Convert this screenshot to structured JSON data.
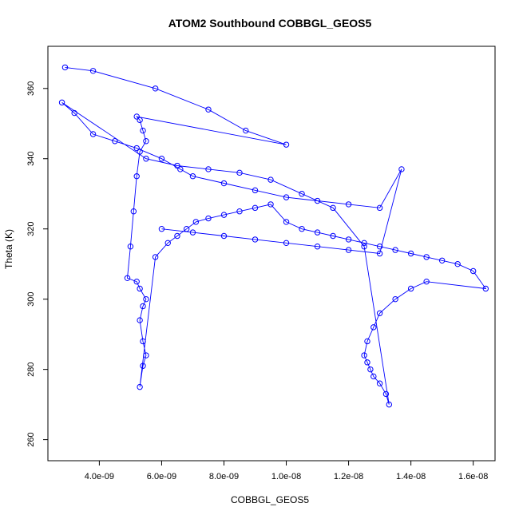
{
  "chart_data": {
    "type": "scatter",
    "title": "ATOM2 Southbound COBBGL_GEOS5",
    "xlabel": "COBBGL_GEOS5",
    "ylabel": "Theta (K)",
    "xlim": [
      2.35e-09,
      1.67e-08
    ],
    "ylim": [
      254,
      372
    ],
    "x_ticks": [
      4e-09,
      6e-09,
      8e-09,
      1e-08,
      1.2e-08,
      1.4e-08,
      1.6e-08
    ],
    "x_tick_labels": [
      "4.0e-09",
      "6.0e-09",
      "8.0e-09",
      "1.0e-08",
      "1.2e-08",
      "1.4e-08",
      "1.6e-08"
    ],
    "y_ticks": [
      260,
      280,
      300,
      320,
      340,
      360
    ],
    "y_tick_labels": [
      "260",
      "280",
      "300",
      "320",
      "340",
      "360"
    ],
    "grid": false,
    "series": [
      {
        "color": "#0000ff",
        "marker": "open-circle",
        "connected": true,
        "x": [
          2.9e-09,
          3.8e-09,
          5.8e-09,
          7.5e-09,
          8.7e-09,
          1e-08,
          5.2e-09,
          5.3e-09,
          5.4e-09,
          5.5e-09,
          5.3e-09,
          5.2e-09,
          5.1e-09,
          5e-09,
          4.9e-09,
          5.2e-09,
          5.3e-09,
          5.5e-09,
          5.4e-09,
          5.3e-09,
          5.4e-09,
          5.5e-09,
          5.4e-09,
          5.3e-09,
          5.8e-09,
          6.2e-09,
          6.5e-09,
          6.8e-09,
          7.1e-09,
          7.5e-09,
          8e-09,
          8.5e-09,
          9e-09,
          9.5e-09,
          1e-08,
          1.05e-08,
          1.1e-08,
          1.15e-08,
          1.2e-08,
          1.25e-08,
          1.3e-08,
          1.35e-08,
          1.4e-08,
          1.45e-08,
          1.5e-08,
          1.55e-08,
          1.6e-08,
          1.64e-08,
          1.45e-08,
          1.4e-08,
          1.35e-08,
          1.3e-08,
          1.28e-08,
          1.26e-08,
          1.25e-08,
          1.26e-08,
          1.27e-08,
          1.28e-08,
          1.3e-08,
          1.32e-08,
          1.33e-08,
          1.25e-08,
          1.15e-08,
          1.05e-08,
          9.5e-09,
          8.5e-09,
          7.5e-09,
          6.5e-09,
          5.5e-09,
          2.8e-09,
          3.2e-09,
          3.8e-09,
          4.5e-09,
          5.2e-09,
          6e-09,
          6.6e-09,
          7e-09,
          8e-09,
          9e-09,
          1e-08,
          1.1e-08,
          1.2e-08,
          1.3e-08,
          1.37e-08,
          1.3e-08,
          1.2e-08,
          1.1e-08,
          1e-08,
          9e-09,
          8e-09,
          7e-09,
          6e-09
        ],
        "y": [
          366,
          365,
          360,
          354,
          348,
          344,
          352,
          351,
          348,
          345,
          342,
          335,
          325,
          315,
          306,
          305,
          303,
          300,
          298,
          294,
          288,
          284,
          281,
          275,
          312,
          316,
          318,
          320,
          322,
          323,
          324,
          325,
          326,
          327,
          322,
          320,
          319,
          318,
          317,
          316,
          315,
          314,
          313,
          312,
          311,
          310,
          308,
          303,
          305,
          303,
          300,
          296,
          292,
          288,
          284,
          282,
          280,
          278,
          276,
          273,
          270,
          315,
          326,
          330,
          334,
          336,
          337,
          338,
          340,
          356,
          353,
          347,
          345,
          343,
          340,
          337,
          335,
          333,
          331,
          329,
          328,
          327,
          326,
          337,
          313,
          314,
          315,
          316,
          317,
          318,
          319,
          320
        ]
      }
    ]
  }
}
